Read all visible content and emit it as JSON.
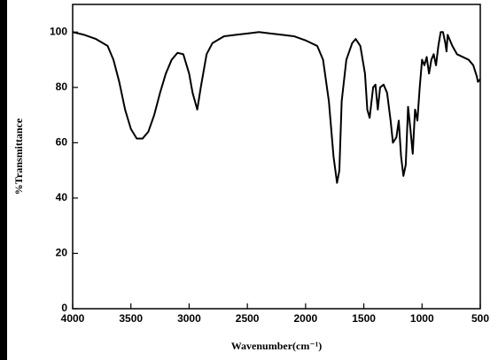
{
  "chart_data": {
    "type": "line",
    "xlabel": "Wavenumber(cm⁻¹)",
    "ylabel": "%Transmittance",
    "xlim": [
      4000,
      500
    ],
    "ylim": [
      0,
      110
    ],
    "xticks": [
      4000,
      3500,
      3000,
      2500,
      2000,
      1500,
      1000,
      500
    ],
    "yticks": [
      0,
      20,
      40,
      60,
      80,
      100
    ],
    "series": [
      {
        "color": "#000000",
        "x": [
          4000,
          3900,
          3800,
          3700,
          3650,
          3600,
          3550,
          3500,
          3450,
          3400,
          3350,
          3300,
          3250,
          3200,
          3150,
          3100,
          3050,
          3000,
          2970,
          2930,
          2900,
          2850,
          2800,
          2700,
          2600,
          2500,
          2400,
          2300,
          2200,
          2100,
          2000,
          1900,
          1850,
          1800,
          1760,
          1730,
          1710,
          1690,
          1650,
          1600,
          1570,
          1530,
          1490,
          1470,
          1450,
          1420,
          1400,
          1380,
          1360,
          1330,
          1300,
          1270,
          1250,
          1220,
          1200,
          1180,
          1160,
          1140,
          1120,
          1100,
          1080,
          1060,
          1040,
          1020,
          1000,
          980,
          960,
          940,
          920,
          900,
          880,
          860,
          840,
          820,
          800,
          790,
          780,
          760,
          740,
          700,
          650,
          600,
          560,
          530,
          520,
          500
        ],
        "values": [
          100,
          99,
          97.5,
          95,
          90,
          82,
          72,
          65,
          61.5,
          61.5,
          64,
          70,
          78,
          85,
          90,
          92.5,
          92,
          85,
          78,
          72,
          80,
          92,
          96,
          98.5,
          99,
          99.5,
          100,
          99.5,
          99,
          98.5,
          97,
          95,
          90,
          75,
          55,
          45.5,
          50,
          75,
          90,
          96,
          97.5,
          95,
          85,
          72,
          69,
          80,
          81,
          72,
          80,
          81,
          78,
          68,
          60,
          62,
          68,
          55,
          48,
          52,
          73,
          65,
          56,
          72,
          68,
          80,
          90,
          88,
          91,
          85,
          90,
          92,
          88,
          95,
          100,
          100,
          96,
          93,
          99,
          97,
          95,
          92,
          91,
          90,
          88,
          84,
          82,
          83
        ]
      }
    ]
  }
}
